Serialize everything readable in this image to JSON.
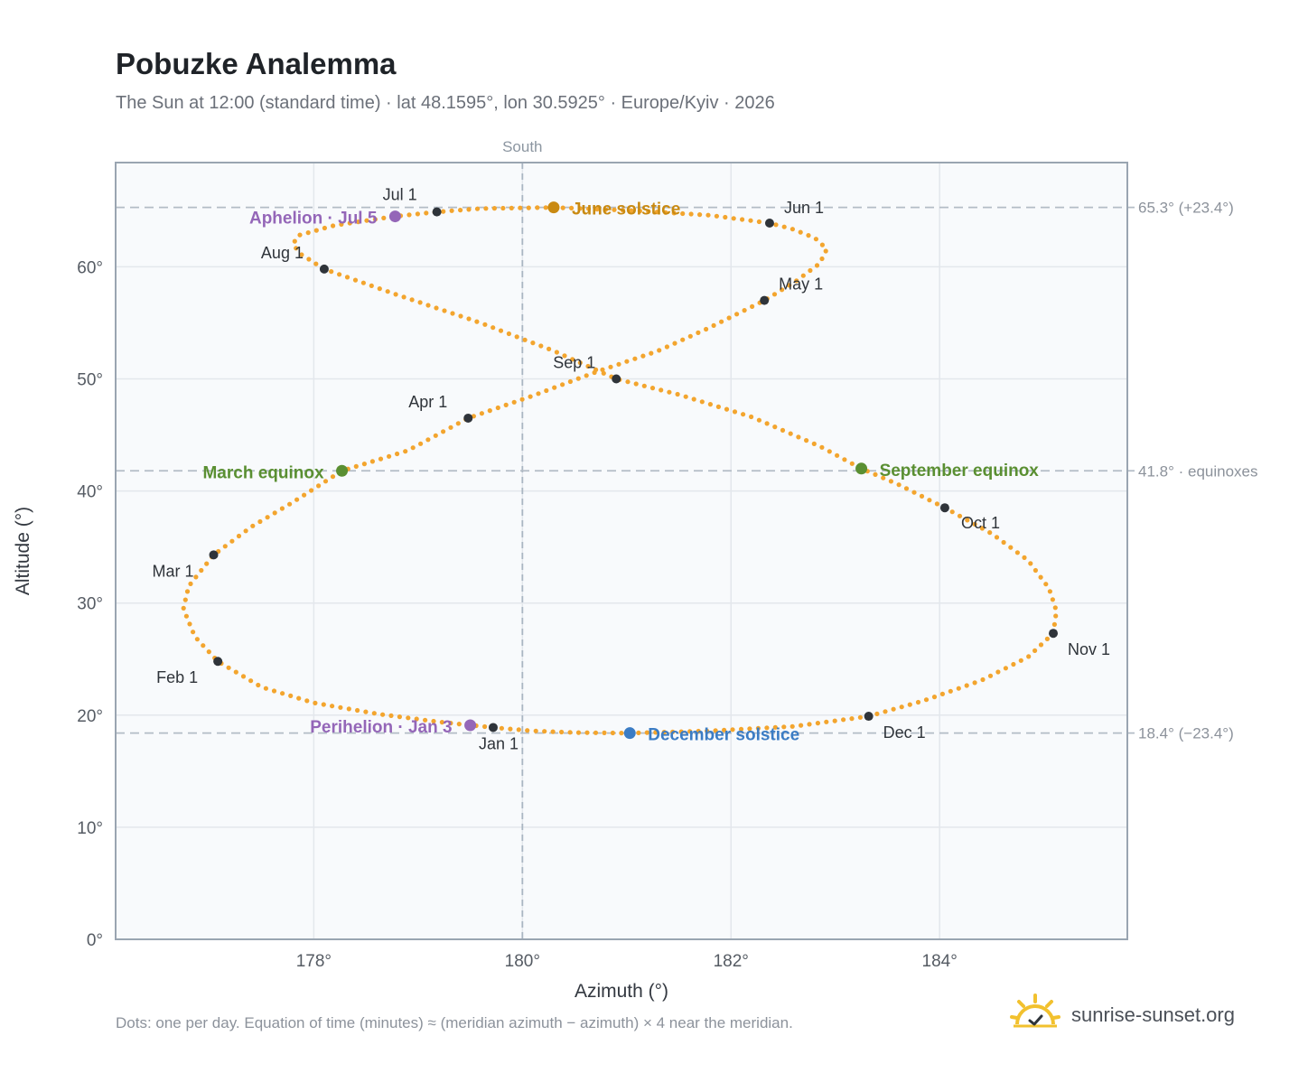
{
  "header": {
    "title": "Pobuzke Analemma",
    "subtitle": "The Sun at 12:00 (standard time) · lat 48.1595°, lon 30.5925° · Europe/Kyiv · 2026"
  },
  "footer": {
    "note": "Dots: one per day. Equation of time (minutes) ≈ (meridian azimuth − azimuth) × 4 near the meridian.",
    "brand": "sunrise-sunset.org",
    "brand_icon": "sun-icon"
  },
  "colors": {
    "path": "#f3a52e",
    "month_marker": "#2f343a",
    "june_solstice": "#c98a12",
    "december_solstice": "#3b7cc4",
    "equinox": "#5a8f32",
    "apsis": "#9466b8",
    "plot_background": "#f8fafc",
    "grid": "#e3e7ec",
    "axis_border": "#9aa5b1"
  },
  "chart_data": {
    "type": "scatter",
    "xlabel": "Azimuth (°)",
    "ylabel": "Altitude (°)",
    "xlim": [
      176.1,
      185.8
    ],
    "ylim": [
      0,
      69.3
    ],
    "grid": true,
    "x_ticks": [
      {
        "value": 178,
        "label": "178°"
      },
      {
        "value": 180,
        "label": "180°"
      },
      {
        "value": 182,
        "label": "182°"
      },
      {
        "value": 184,
        "label": "184°"
      }
    ],
    "y_ticks": [
      {
        "value": 0,
        "label": "0°"
      },
      {
        "value": 10,
        "label": "10°"
      },
      {
        "value": 20,
        "label": "20°"
      },
      {
        "value": 30,
        "label": "30°"
      },
      {
        "value": 40,
        "label": "40°"
      },
      {
        "value": 50,
        "label": "50°"
      },
      {
        "value": 60,
        "label": "60°"
      }
    ],
    "meridian": {
      "x": 180,
      "label": "South"
    },
    "reference_lines": [
      {
        "y": 65.3,
        "label": "65.3° (+23.4°)"
      },
      {
        "y": 41.8,
        "label": "41.8° · equinoxes"
      },
      {
        "y": 18.4,
        "label": "18.4° (−23.4°)"
      }
    ],
    "path_series": {
      "name": "Dots: one per day",
      "points": [
        [
          179.72,
          18.9
        ],
        [
          179.2,
          19.4
        ],
        [
          178.62,
          20.1
        ],
        [
          178.0,
          21.1
        ],
        [
          177.5,
          22.5
        ],
        [
          177.08,
          24.8
        ],
        [
          176.86,
          27.0
        ],
        [
          176.75,
          29.5
        ],
        [
          176.8,
          31.5
        ],
        [
          177.04,
          34.3
        ],
        [
          177.4,
          36.8
        ],
        [
          177.8,
          39.0
        ],
        [
          178.27,
          41.8
        ],
        [
          178.9,
          43.6
        ],
        [
          179.48,
          46.5
        ],
        [
          180.1,
          48.5
        ],
        [
          180.7,
          50.6
        ],
        [
          181.3,
          52.5
        ],
        [
          181.8,
          54.6
        ],
        [
          182.32,
          57.0
        ],
        [
          182.62,
          58.7
        ],
        [
          182.85,
          60.3
        ],
        [
          182.92,
          61.6
        ],
        [
          182.8,
          62.6
        ],
        [
          182.58,
          63.4
        ],
        [
          182.37,
          63.9
        ],
        [
          181.8,
          64.6
        ],
        [
          181.1,
          65.0
        ],
        [
          180.3,
          65.3
        ],
        [
          179.6,
          65.2
        ],
        [
          179.18,
          64.9
        ],
        [
          178.78,
          64.5
        ],
        [
          178.2,
          63.7
        ],
        [
          177.85,
          62.8
        ],
        [
          177.8,
          62.0
        ],
        [
          177.88,
          61.1
        ],
        [
          178.1,
          59.8
        ],
        [
          178.8,
          57.5
        ],
        [
          179.6,
          55.0
        ],
        [
          180.3,
          52.5
        ],
        [
          180.9,
          50.0
        ],
        [
          181.5,
          48.6
        ],
        [
          182.2,
          46.6
        ],
        [
          182.85,
          44.0
        ],
        [
          183.25,
          42.0
        ],
        [
          183.6,
          40.6
        ],
        [
          184.05,
          38.5
        ],
        [
          184.5,
          36.2
        ],
        [
          184.85,
          33.8
        ],
        [
          185.05,
          31.3
        ],
        [
          185.12,
          29.3
        ],
        [
          185.09,
          27.3
        ],
        [
          184.85,
          25.2
        ],
        [
          184.4,
          23.1
        ],
        [
          183.85,
          21.3
        ],
        [
          183.32,
          19.9
        ],
        [
          182.6,
          19.0
        ],
        [
          181.8,
          18.6
        ],
        [
          181.03,
          18.4
        ],
        [
          180.5,
          18.45
        ],
        [
          180.1,
          18.6
        ],
        [
          179.72,
          18.9
        ]
      ]
    },
    "month_markers": [
      {
        "label": "Jan 1",
        "x": 179.72,
        "y": 18.9
      },
      {
        "label": "Feb 1",
        "x": 177.08,
        "y": 24.8
      },
      {
        "label": "Mar 1",
        "x": 177.04,
        "y": 34.3
      },
      {
        "label": "Apr 1",
        "x": 179.48,
        "y": 46.5
      },
      {
        "label": "May 1",
        "x": 182.32,
        "y": 57.0
      },
      {
        "label": "Jun 1",
        "x": 182.37,
        "y": 63.9
      },
      {
        "label": "Jul 1",
        "x": 179.18,
        "y": 64.9
      },
      {
        "label": "Aug 1",
        "x": 178.1,
        "y": 59.8
      },
      {
        "label": "Sep 1",
        "x": 180.9,
        "y": 50.0
      },
      {
        "label": "Oct 1",
        "x": 184.05,
        "y": 38.5
      },
      {
        "label": "Nov 1",
        "x": 185.09,
        "y": 27.3
      },
      {
        "label": "Dec 1",
        "x": 183.32,
        "y": 19.9
      }
    ],
    "events": [
      {
        "label": "June solstice",
        "x": 180.3,
        "y": 65.3,
        "color_key": "june_solstice"
      },
      {
        "label": "December solstice",
        "x": 181.03,
        "y": 18.4,
        "color_key": "december_solstice"
      },
      {
        "label": "March equinox",
        "x": 178.27,
        "y": 41.8,
        "color_key": "equinox"
      },
      {
        "label": "September equinox",
        "x": 183.25,
        "y": 42.0,
        "color_key": "equinox"
      },
      {
        "label": "Aphelion · Jul 5",
        "x": 178.78,
        "y": 64.5,
        "color_key": "apsis"
      },
      {
        "label": "Perihelion · Jan 3",
        "x": 179.5,
        "y": 19.1,
        "color_key": "apsis"
      }
    ]
  }
}
